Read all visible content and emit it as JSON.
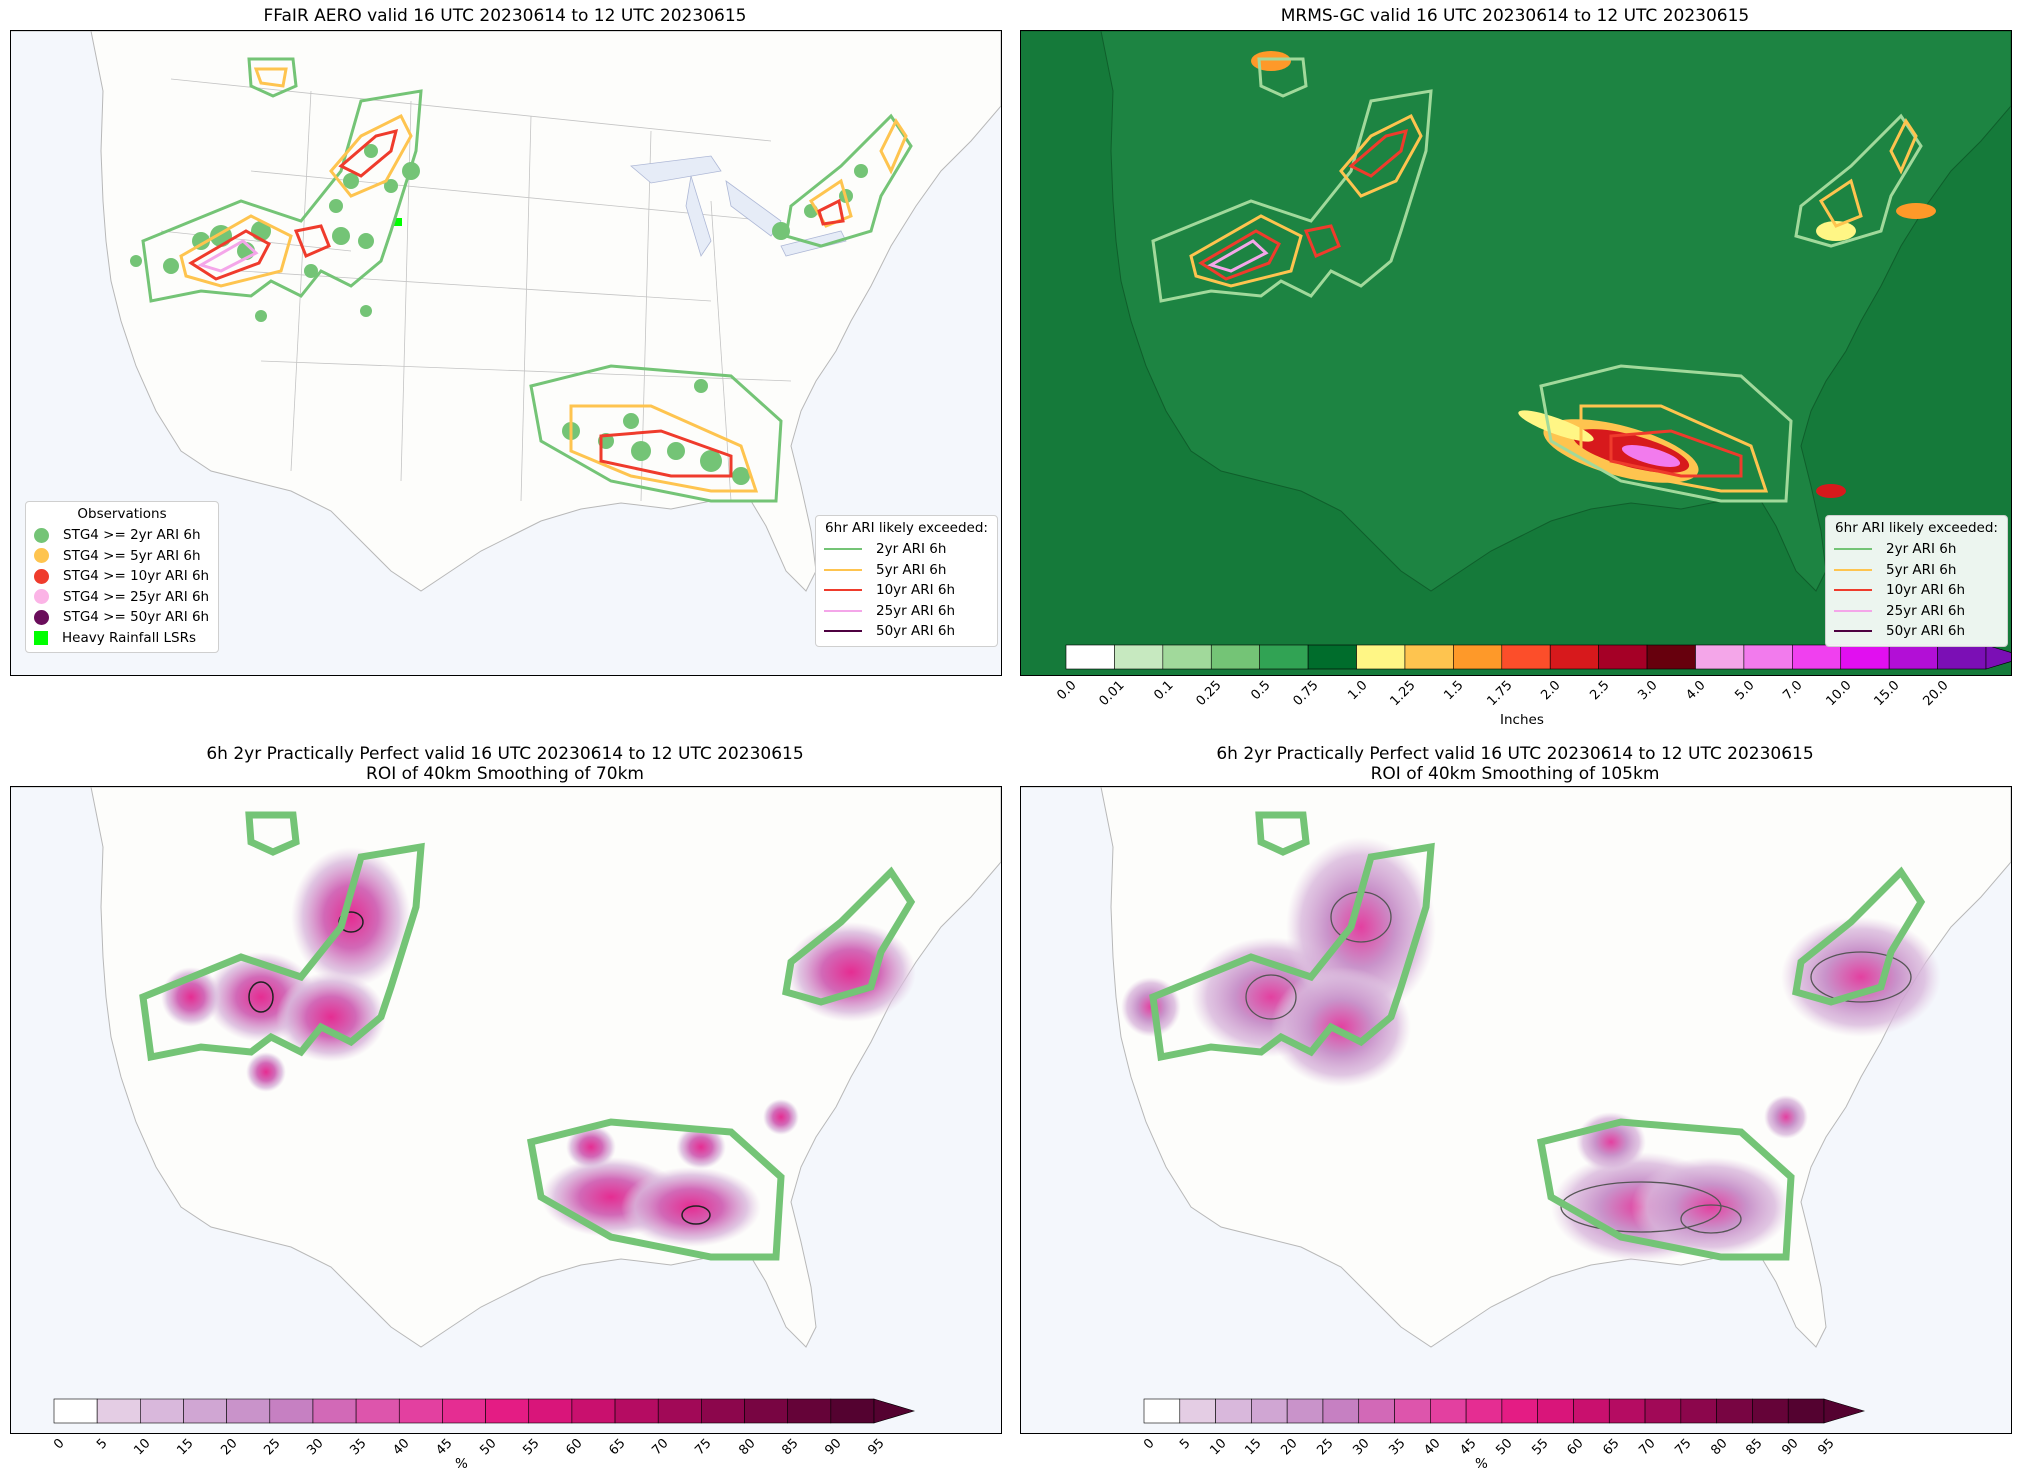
{
  "panels": [
    {
      "id": "p1",
      "title": "FFaIR AERO valid 16 UTC 20230614 to 12 UTC 20230615"
    },
    {
      "id": "p2",
      "title": "MRMS-GC valid 16 UTC 20230614 to 12 UTC 20230615"
    },
    {
      "id": "p3",
      "title": "6h 2yr Practically Perfect valid 16 UTC 20230614 to 12 UTC 20230615\nROI of 40km Smoothing of 70km"
    },
    {
      "id": "p4",
      "title": "6h 2yr Practically Perfect valid 16 UTC 20230614 to 12 UTC 20230615\nROI of 40km Smoothing of 105km"
    }
  ],
  "obs_legend": {
    "title": "Observations",
    "items": [
      {
        "label": "STG4 >= 2yr ARI 6h",
        "color": "#74c476",
        "shape": "circle"
      },
      {
        "label": "STG4 >= 5yr ARI 6h",
        "color": "#fec44f",
        "shape": "circle"
      },
      {
        "label": "STG4 >= 10yr ARI 6h",
        "color": "#ef3b2c",
        "shape": "circle"
      },
      {
        "label": "STG4 >= 25yr ARI 6h",
        "color": "#fbb4e6",
        "shape": "circle"
      },
      {
        "label": "STG4 >= 50yr ARI 6h",
        "color": "#6a0d5b",
        "shape": "circle"
      },
      {
        "label": "Heavy Rainfall LSRs",
        "color": "#00ff00",
        "shape": "square"
      }
    ]
  },
  "ari_legend": {
    "title": "6hr ARI likely exceeded:",
    "items": [
      {
        "label": "2yr ARI 6h",
        "color": "#74c476"
      },
      {
        "label": "5yr ARI 6h",
        "color": "#fec44f"
      },
      {
        "label": "10yr ARI 6h",
        "color": "#ef3b2c"
      },
      {
        "label": "25yr ARI 6h",
        "color": "#f4a6e9"
      },
      {
        "label": "50yr ARI 6h",
        "color": "#4d0040"
      }
    ]
  },
  "precip_colorbar": {
    "unit": "Inches",
    "ticks": [
      "0.0",
      "0.01",
      "0.1",
      "0.25",
      "0.5",
      "0.75",
      "1.0",
      "1.25",
      "1.5",
      "1.75",
      "2.0",
      "2.5",
      "3.0",
      "4.0",
      "5.0",
      "7.0",
      "10.0",
      "15.0",
      "20.0"
    ],
    "colors": [
      "#ffffff",
      "#c7e9c0",
      "#a1d99b",
      "#74c476",
      "#31a354",
      "#006d2c",
      "#fff685",
      "#fec44f",
      "#fe9929",
      "#fc4e2a",
      "#d7191c",
      "#a50026",
      "#67000d",
      "#f4a6e9",
      "#f27bed",
      "#f040ef",
      "#e10ff0",
      "#b20fd6",
      "#7b0fb5"
    ]
  },
  "pct_colorbar": {
    "unit": "%",
    "ticks": [
      "0",
      "5",
      "10",
      "15",
      "20",
      "25",
      "30",
      "35",
      "40",
      "45",
      "50",
      "55",
      "60",
      "65",
      "70",
      "75",
      "80",
      "85",
      "90",
      "95"
    ],
    "colors": [
      "#ffffff",
      "#e4cde4",
      "#d9b8dc",
      "#d0a6d3",
      "#c993ca",
      "#c680c2",
      "#d269b7",
      "#dd55ac",
      "#e340a0",
      "#e52d92",
      "#e41c84",
      "#d9157a",
      "#c9106e",
      "#b50c62",
      "#a10957",
      "#8c064c",
      "#780542",
      "#650338",
      "#540230"
    ]
  }
}
